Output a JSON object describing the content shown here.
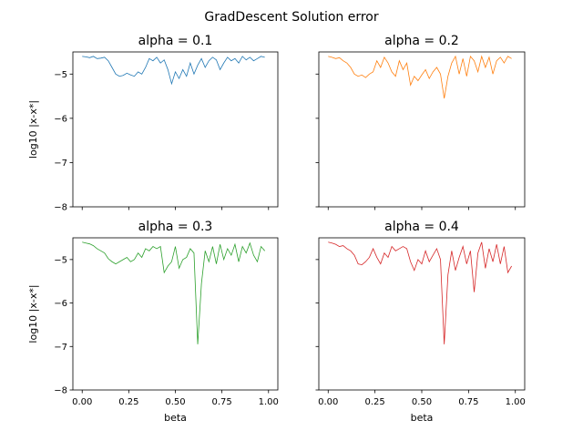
{
  "figure": {
    "suptitle": "GradDescent Solution error"
  },
  "chart_data": [
    {
      "type": "line",
      "title": "alpha = 0.1",
      "xlabel": "",
      "ylabel": "log10 |x-x*|",
      "xlim": [
        -0.05,
        1.05
      ],
      "ylim": [
        -8,
        -4.5
      ],
      "xticks": [
        0.0,
        0.25,
        0.5,
        0.75,
        1.0
      ],
      "xtick_labels": [],
      "yticks": [
        -8,
        -7,
        -6,
        -5
      ],
      "ytick_labels": [
        "−8",
        "−7",
        "−6",
        "−5"
      ],
      "color": "#1f77b4",
      "x": [
        0.0,
        0.02,
        0.04,
        0.06,
        0.08,
        0.1,
        0.12,
        0.14,
        0.16,
        0.18,
        0.2,
        0.22,
        0.24,
        0.26,
        0.28,
        0.3,
        0.32,
        0.34,
        0.36,
        0.38,
        0.4,
        0.42,
        0.44,
        0.46,
        0.48,
        0.5,
        0.52,
        0.54,
        0.56,
        0.58,
        0.6,
        0.62,
        0.64,
        0.66,
        0.68,
        0.7,
        0.72,
        0.74,
        0.76,
        0.78,
        0.8,
        0.82,
        0.84,
        0.86,
        0.88,
        0.9,
        0.92,
        0.94,
        0.96,
        0.98
      ],
      "y": [
        -4.6,
        -4.61,
        -4.63,
        -4.6,
        -4.65,
        -4.64,
        -4.62,
        -4.7,
        -4.85,
        -5.0,
        -5.05,
        -5.03,
        -4.98,
        -5.02,
        -5.05,
        -4.95,
        -5.0,
        -4.85,
        -4.65,
        -4.7,
        -4.62,
        -4.75,
        -4.68,
        -4.9,
        -5.22,
        -4.95,
        -5.1,
        -4.9,
        -5.05,
        -4.75,
        -5.0,
        -4.8,
        -4.65,
        -4.85,
        -4.7,
        -4.62,
        -4.68,
        -4.9,
        -4.75,
        -4.62,
        -4.7,
        -4.65,
        -4.75,
        -4.6,
        -4.68,
        -4.62,
        -4.7,
        -4.65,
        -4.6,
        -4.62
      ]
    },
    {
      "type": "line",
      "title": "alpha = 0.2",
      "xlabel": "",
      "ylabel": "",
      "xlim": [
        -0.05,
        1.05
      ],
      "ylim": [
        -8,
        -4.5
      ],
      "xticks": [
        0.0,
        0.25,
        0.5,
        0.75,
        1.0
      ],
      "xtick_labels": [],
      "yticks": [
        -8,
        -7,
        -6,
        -5
      ],
      "ytick_labels": [],
      "color": "#ff7f0e",
      "x": [
        0.0,
        0.02,
        0.04,
        0.06,
        0.08,
        0.1,
        0.12,
        0.14,
        0.16,
        0.18,
        0.2,
        0.22,
        0.24,
        0.26,
        0.28,
        0.3,
        0.32,
        0.34,
        0.36,
        0.38,
        0.4,
        0.42,
        0.44,
        0.46,
        0.48,
        0.5,
        0.52,
        0.54,
        0.56,
        0.58,
        0.6,
        0.62,
        0.64,
        0.66,
        0.68,
        0.7,
        0.72,
        0.74,
        0.76,
        0.78,
        0.8,
        0.82,
        0.84,
        0.86,
        0.88,
        0.9,
        0.92,
        0.94,
        0.96,
        0.98
      ],
      "y": [
        -4.6,
        -4.62,
        -4.65,
        -4.63,
        -4.7,
        -4.75,
        -4.85,
        -5.0,
        -5.05,
        -5.02,
        -5.08,
        -5.0,
        -4.95,
        -4.7,
        -4.85,
        -4.62,
        -4.75,
        -4.95,
        -5.05,
        -4.7,
        -4.9,
        -4.75,
        -5.25,
        -5.05,
        -5.15,
        -5.02,
        -4.9,
        -5.1,
        -4.95,
        -4.85,
        -5.0,
        -5.55,
        -5.05,
        -4.75,
        -4.6,
        -5.0,
        -4.65,
        -5.05,
        -4.6,
        -4.7,
        -4.95,
        -4.6,
        -4.85,
        -4.62,
        -5.0,
        -4.7,
        -4.62,
        -4.75,
        -4.6,
        -4.65
      ]
    },
    {
      "type": "line",
      "title": "alpha = 0.3",
      "xlabel": "beta",
      "ylabel": "log10 |x-x*|",
      "xlim": [
        -0.05,
        1.05
      ],
      "ylim": [
        -8,
        -4.5
      ],
      "xticks": [
        0.0,
        0.25,
        0.5,
        0.75,
        1.0
      ],
      "xtick_labels": [
        "0.00",
        "0.25",
        "0.50",
        "0.75",
        "1.00"
      ],
      "yticks": [
        -8,
        -7,
        -6,
        -5
      ],
      "ytick_labels": [
        "−8",
        "−7",
        "−6",
        "−5"
      ],
      "color": "#2ca02c",
      "x": [
        0.0,
        0.02,
        0.04,
        0.06,
        0.08,
        0.1,
        0.12,
        0.14,
        0.16,
        0.18,
        0.2,
        0.22,
        0.24,
        0.26,
        0.28,
        0.3,
        0.32,
        0.34,
        0.36,
        0.38,
        0.4,
        0.42,
        0.44,
        0.46,
        0.48,
        0.5,
        0.52,
        0.54,
        0.56,
        0.58,
        0.6,
        0.62,
        0.64,
        0.66,
        0.68,
        0.7,
        0.72,
        0.74,
        0.76,
        0.78,
        0.8,
        0.82,
        0.84,
        0.86,
        0.88,
        0.9,
        0.92,
        0.94,
        0.96,
        0.98
      ],
      "y": [
        -4.6,
        -4.62,
        -4.64,
        -4.68,
        -4.75,
        -4.8,
        -4.85,
        -4.98,
        -5.05,
        -5.1,
        -5.05,
        -5.0,
        -4.95,
        -5.05,
        -5.0,
        -4.85,
        -4.95,
        -4.75,
        -4.8,
        -4.7,
        -4.75,
        -4.7,
        -5.3,
        -5.15,
        -5.05,
        -4.7,
        -5.2,
        -5.0,
        -4.95,
        -4.75,
        -4.85,
        -6.95,
        -5.55,
        -4.8,
        -5.05,
        -4.7,
        -5.1,
        -4.65,
        -5.0,
        -4.75,
        -4.9,
        -4.65,
        -5.05,
        -4.7,
        -4.85,
        -4.62,
        -4.9,
        -5.05,
        -4.7,
        -4.8
      ]
    },
    {
      "type": "line",
      "title": "alpha = 0.4",
      "xlabel": "beta",
      "ylabel": "",
      "xlim": [
        -0.05,
        1.05
      ],
      "ylim": [
        -8,
        -4.5
      ],
      "xticks": [
        0.0,
        0.25,
        0.5,
        0.75,
        1.0
      ],
      "xtick_labels": [
        "0.00",
        "0.25",
        "0.50",
        "0.75",
        "1.00"
      ],
      "yticks": [
        -8,
        -7,
        -6,
        -5
      ],
      "ytick_labels": [],
      "color": "#d62728",
      "x": [
        0.0,
        0.02,
        0.04,
        0.06,
        0.08,
        0.1,
        0.12,
        0.14,
        0.16,
        0.18,
        0.2,
        0.22,
        0.24,
        0.26,
        0.28,
        0.3,
        0.32,
        0.34,
        0.36,
        0.38,
        0.4,
        0.42,
        0.44,
        0.46,
        0.48,
        0.5,
        0.52,
        0.54,
        0.56,
        0.58,
        0.6,
        0.62,
        0.64,
        0.66,
        0.68,
        0.7,
        0.72,
        0.74,
        0.76,
        0.78,
        0.8,
        0.82,
        0.84,
        0.86,
        0.88,
        0.9,
        0.92,
        0.94,
        0.96,
        0.98
      ],
      "y": [
        -4.6,
        -4.62,
        -4.65,
        -4.7,
        -4.68,
        -4.75,
        -4.8,
        -4.9,
        -5.1,
        -5.12,
        -5.05,
        -4.95,
        -4.75,
        -4.95,
        -5.1,
        -4.85,
        -4.95,
        -4.7,
        -4.8,
        -4.75,
        -4.7,
        -4.75,
        -5.05,
        -5.25,
        -5.0,
        -5.1,
        -4.8,
        -5.05,
        -4.9,
        -4.75,
        -5.0,
        -6.95,
        -5.35,
        -4.8,
        -5.25,
        -4.95,
        -4.7,
        -5.1,
        -4.8,
        -5.75,
        -4.85,
        -4.6,
        -5.2,
        -4.75,
        -5.05,
        -4.65,
        -5.1,
        -4.7,
        -5.3,
        -5.15
      ]
    }
  ]
}
